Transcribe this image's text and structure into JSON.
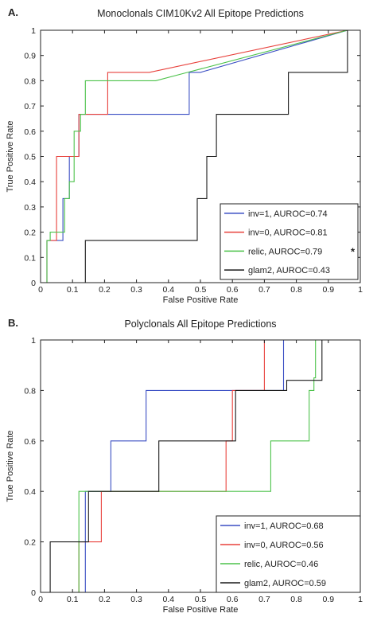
{
  "chart_data": [
    {
      "type": "line",
      "panel_label": "A.",
      "title": "Monoclonals CIM10Kv2 All Epitope Predictions",
      "xlabel": "False Positive Rate",
      "ylabel": "True Positive Rate",
      "xlim": [
        0,
        1
      ],
      "ylim": [
        0,
        1
      ],
      "xticks": [
        "0",
        "0.1",
        "0.2",
        "0.3",
        "0.4",
        "0.5",
        "0.6",
        "0.7",
        "0.8",
        "0.9",
        "1"
      ],
      "yticks": [
        "0",
        "0.1",
        "0.2",
        "0.3",
        "0.4",
        "0.5",
        "0.6",
        "0.7",
        "0.8",
        "0.9",
        "1"
      ],
      "grid": false,
      "legend_position": "lower-right",
      "series": [
        {
          "name": "inv=1, AUROC=0.74",
          "color": "#3b4fc4",
          "x": [
            0,
            0.02,
            0.02,
            0.07,
            0.07,
            0.09,
            0.09,
            0.12,
            0.12,
            0.14,
            0.14,
            0.465,
            0.465,
            0.5,
            0.96,
            1
          ],
          "y": [
            0,
            0,
            0.167,
            0.167,
            0.333,
            0.333,
            0.5,
            0.5,
            0.667,
            0.667,
            0.667,
            0.667,
            0.833,
            0.833,
            1,
            1
          ]
        },
        {
          "name": "inv=0, AUROC=0.81",
          "color": "#e8413c",
          "x": [
            0,
            0.02,
            0.02,
            0.05,
            0.05,
            0.12,
            0.12,
            0.155,
            0.155,
            0.21,
            0.21,
            0.34,
            0.96,
            1
          ],
          "y": [
            0,
            0,
            0.167,
            0.167,
            0.5,
            0.5,
            0.667,
            0.667,
            0.667,
            0.667,
            0.833,
            0.833,
            1,
            1
          ]
        },
        {
          "name": "relic, AUROC=0.79",
          "color": "#4cc24a",
          "x": [
            0,
            0.02,
            0.02,
            0.03,
            0.03,
            0.075,
            0.075,
            0.09,
            0.09,
            0.105,
            0.105,
            0.125,
            0.125,
            0.14,
            0.14,
            0.36,
            0.46,
            0.96,
            1
          ],
          "y": [
            0,
            0,
            0.167,
            0.167,
            0.2,
            0.2,
            0.333,
            0.333,
            0.4,
            0.4,
            0.6,
            0.6,
            0.667,
            0.667,
            0.8,
            0.8,
            0.833,
            1,
            1
          ]
        },
        {
          "name": "glam2, AUROC=0.43",
          "color": "#1a1a1a",
          "x": [
            0,
            0.11,
            0.11,
            0.14,
            0.14,
            0.49,
            0.49,
            0.52,
            0.52,
            0.535,
            0.535,
            0.55,
            0.55,
            0.775,
            0.775,
            0.96,
            0.96,
            1
          ],
          "y": [
            0,
            0,
            0,
            0,
            0.167,
            0.167,
            0.333,
            0.333,
            0.5,
            0.5,
            0.5,
            0.5,
            0.667,
            0.667,
            0.833,
            0.833,
            1,
            1
          ]
        }
      ]
    },
    {
      "type": "line",
      "panel_label": "B.",
      "title": "Polyclonals All Epitope Predictions",
      "xlabel": "False Positive Rate",
      "ylabel": "True Positive Rate",
      "xlim": [
        0,
        1
      ],
      "ylim": [
        0,
        1
      ],
      "xticks": [
        "0",
        "0.1",
        "0.2",
        "0.3",
        "0.4",
        "0.5",
        "0.6",
        "0.7",
        "0.8",
        "0.9",
        "1"
      ],
      "yticks": [
        "0",
        "0.2",
        "0.4",
        "0.6",
        "0.8",
        "1"
      ],
      "grid": false,
      "legend_position": "lower-right",
      "series": [
        {
          "name": "inv=1, AUROC=0.68",
          "color": "#3b4fc4",
          "x": [
            0,
            0.14,
            0.14,
            0.22,
            0.22,
            0.33,
            0.33,
            0.76,
            0.76
          ],
          "y": [
            0,
            0,
            0.4,
            0.4,
            0.6,
            0.6,
            0.8,
            0.8,
            1
          ]
        },
        {
          "name": "inv=0, AUROC=0.56",
          "color": "#e8413c",
          "x": [
            0,
            0.12,
            0.12,
            0.19,
            0.19,
            0.58,
            0.58,
            0.6,
            0.6,
            0.7,
            0.7
          ],
          "y": [
            0,
            0,
            0.2,
            0.2,
            0.4,
            0.4,
            0.6,
            0.6,
            0.8,
            0.8,
            1
          ]
        },
        {
          "name": "relic, AUROC=0.46",
          "color": "#4cc24a",
          "x": [
            0,
            0.12,
            0.12,
            0.72,
            0.72,
            0.84,
            0.84,
            0.855,
            0.855,
            0.86,
            0.86
          ],
          "y": [
            0,
            0,
            0.4,
            0.4,
            0.6,
            0.6,
            0.8,
            0.8,
            0.85,
            0.85,
            1
          ]
        },
        {
          "name": "glam2, AUROC=0.59",
          "color": "#1a1a1a",
          "x": [
            0,
            0.03,
            0.03,
            0.11,
            0.11,
            0.15,
            0.15,
            0.37,
            0.37,
            0.61,
            0.61,
            0.77,
            0.77,
            0.88,
            0.88
          ],
          "y": [
            0,
            0,
            0.2,
            0.2,
            0.2,
            0.2,
            0.4,
            0.4,
            0.6,
            0.6,
            0.8,
            0.8,
            0.84,
            0.84,
            1
          ]
        }
      ]
    }
  ]
}
